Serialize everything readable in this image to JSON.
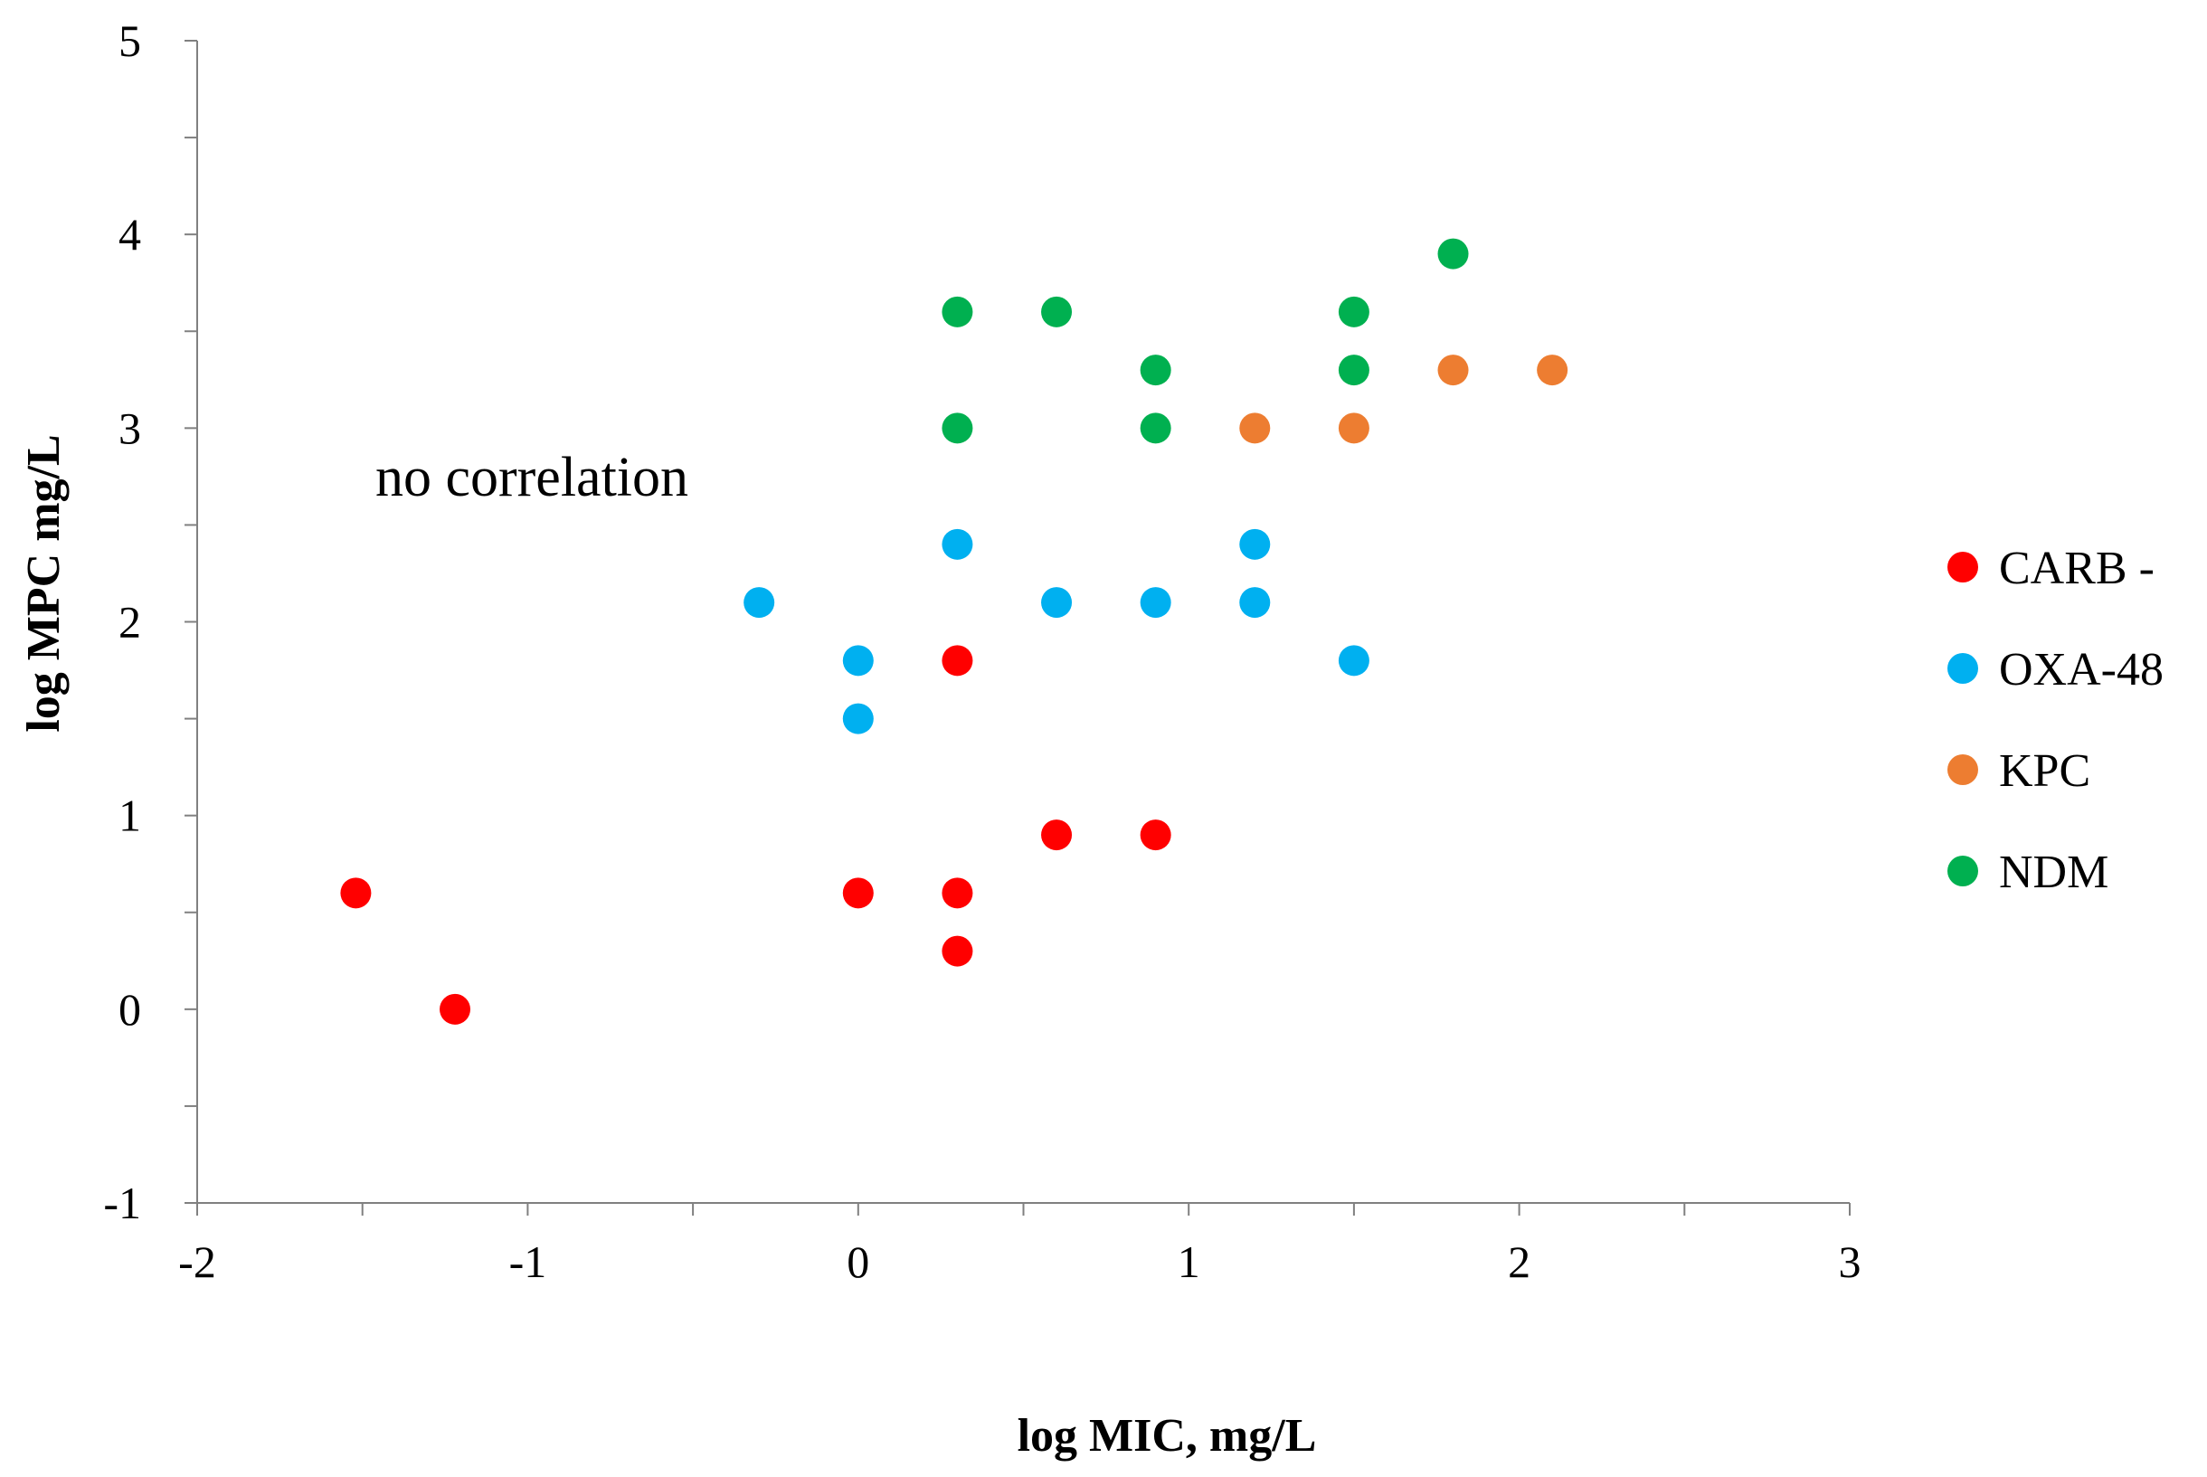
{
  "chart_data": {
    "type": "scatter",
    "title": "",
    "xlabel": "log MIC, mg/L",
    "ylabel": "log MPC mg/L",
    "xlim": [
      -2,
      3
    ],
    "ylim": [
      -1,
      5
    ],
    "xticks": [
      -2,
      -1,
      0,
      1,
      2,
      3
    ],
    "yticks": [
      -1,
      0,
      1,
      2,
      3,
      4,
      5
    ],
    "grid": false,
    "legend_position": "right",
    "annotation": "no correlation",
    "series": [
      {
        "name": "CARB -",
        "color": "#ff0000",
        "points": [
          [
            -1.52,
            0.6
          ],
          [
            -1.22,
            0.0
          ],
          [
            0.0,
            0.6
          ],
          [
            0.3,
            0.6
          ],
          [
            0.3,
            0.3
          ],
          [
            0.3,
            1.8
          ],
          [
            0.6,
            0.9
          ],
          [
            0.9,
            0.9
          ]
        ]
      },
      {
        "name": "OXA-48",
        "color": "#00b0f0",
        "points": [
          [
            -0.3,
            2.1
          ],
          [
            0.0,
            1.8
          ],
          [
            0.0,
            1.5
          ],
          [
            0.3,
            2.4
          ],
          [
            0.6,
            2.1
          ],
          [
            0.9,
            2.1
          ],
          [
            1.2,
            2.1
          ],
          [
            1.2,
            2.4
          ],
          [
            1.5,
            1.8
          ]
        ]
      },
      {
        "name": "KPC",
        "color": "#ed7d31",
        "points": [
          [
            1.2,
            3.0
          ],
          [
            1.5,
            3.0
          ],
          [
            1.8,
            3.3
          ],
          [
            2.1,
            3.3
          ]
        ]
      },
      {
        "name": "NDM",
        "color": "#00b050",
        "points": [
          [
            0.3,
            3.6
          ],
          [
            0.3,
            3.0
          ],
          [
            0.6,
            3.6
          ],
          [
            0.9,
            3.3
          ],
          [
            0.9,
            3.0
          ],
          [
            1.5,
            3.6
          ],
          [
            1.5,
            3.3
          ],
          [
            1.8,
            3.9
          ]
        ]
      }
    ]
  }
}
